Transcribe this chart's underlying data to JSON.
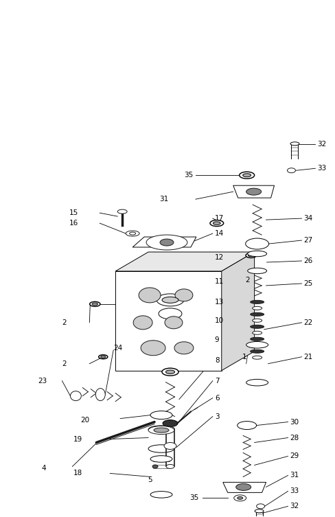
{
  "bg_color": "#ffffff",
  "line_color": "#1a1a1a",
  "figsize": [
    4.89,
    7.53
  ],
  "dpi": 100,
  "lw": 0.7
}
